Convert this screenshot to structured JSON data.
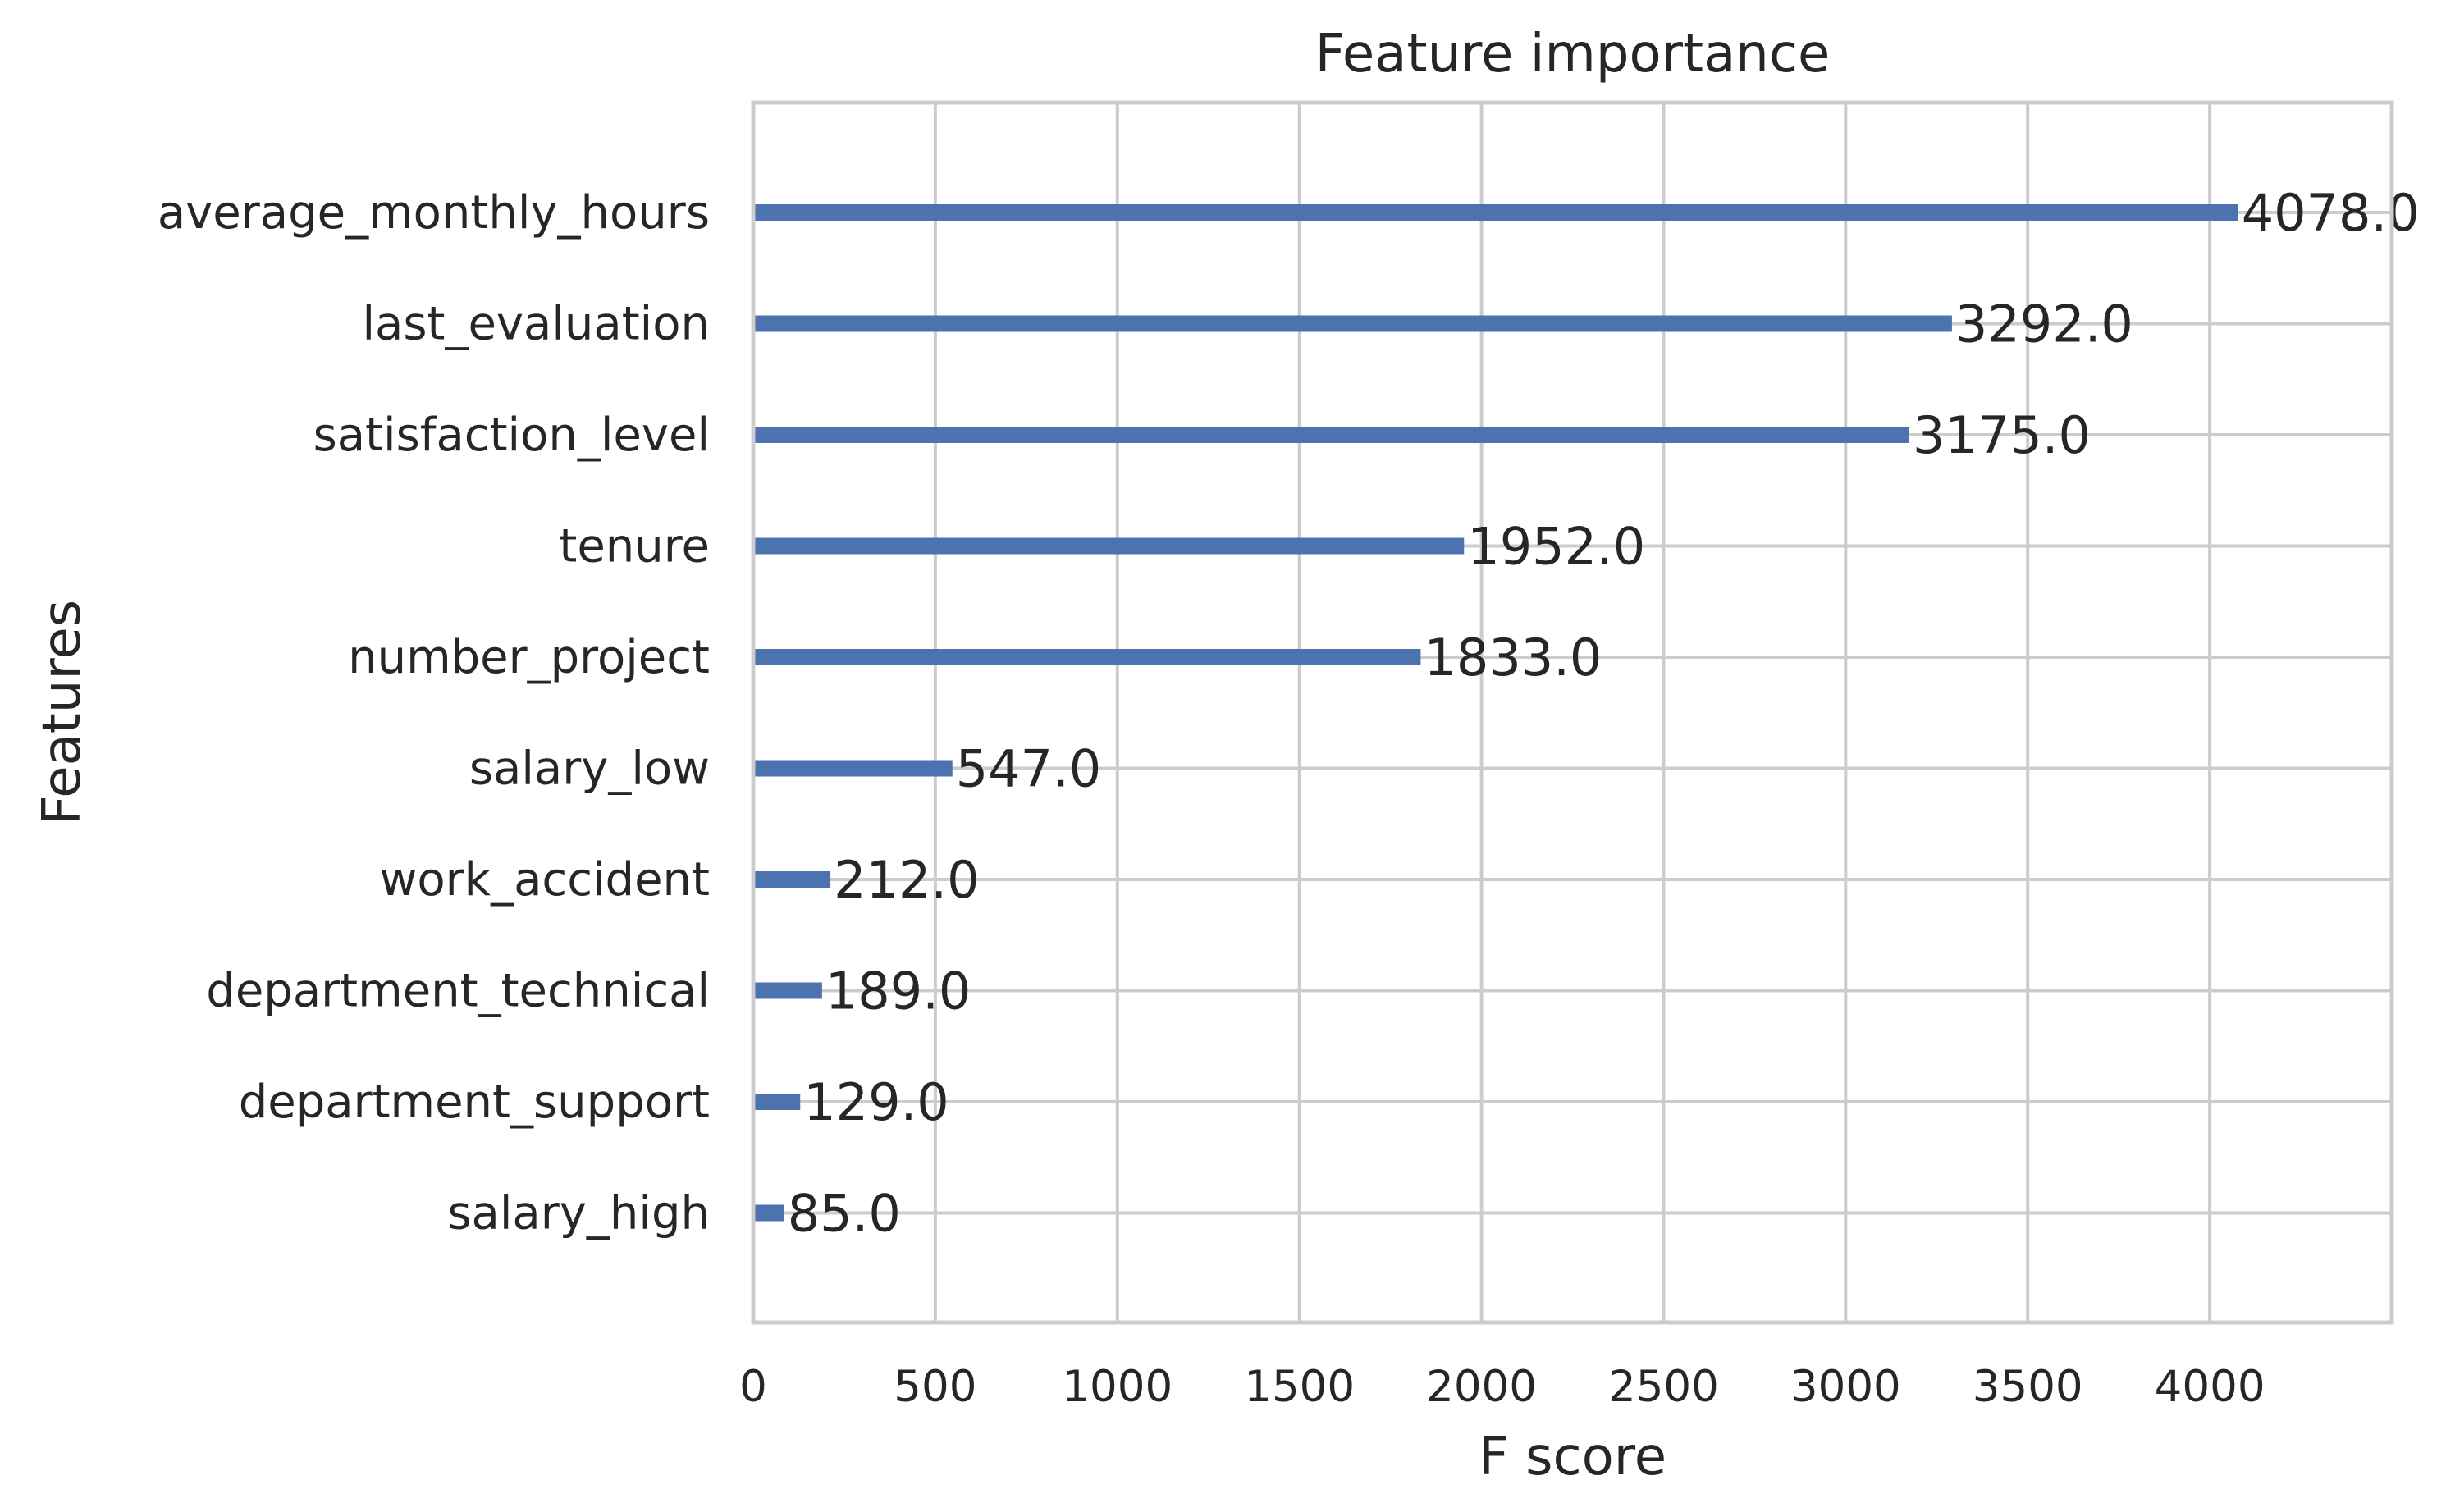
{
  "chart_data": {
    "type": "bar",
    "orientation": "horizontal",
    "title": "Feature importance",
    "xlabel": "F score",
    "ylabel": "Features",
    "xlim": [
      0,
      4500
    ],
    "xticks": [
      0,
      500,
      1000,
      1500,
      2000,
      2500,
      3000,
      3500,
      4000
    ],
    "grid": true,
    "colors": {
      "bar": "#4c72b0",
      "grid": "#cccccc",
      "text": "#262626"
    },
    "categories": [
      "average_monthly_hours",
      "last_evaluation",
      "satisfaction_level",
      "tenure",
      "number_project",
      "salary_low",
      "work_accident",
      "department_technical",
      "department_support",
      "salary_high"
    ],
    "values": [
      4078,
      3292,
      3175,
      1952,
      1833,
      547,
      212,
      189,
      129,
      85
    ],
    "value_labels": [
      "4078.0",
      "3292.0",
      "3175.0",
      "1952.0",
      "1833.0",
      "547.0",
      "212.0",
      "189.0",
      "129.0",
      "85.0"
    ]
  }
}
